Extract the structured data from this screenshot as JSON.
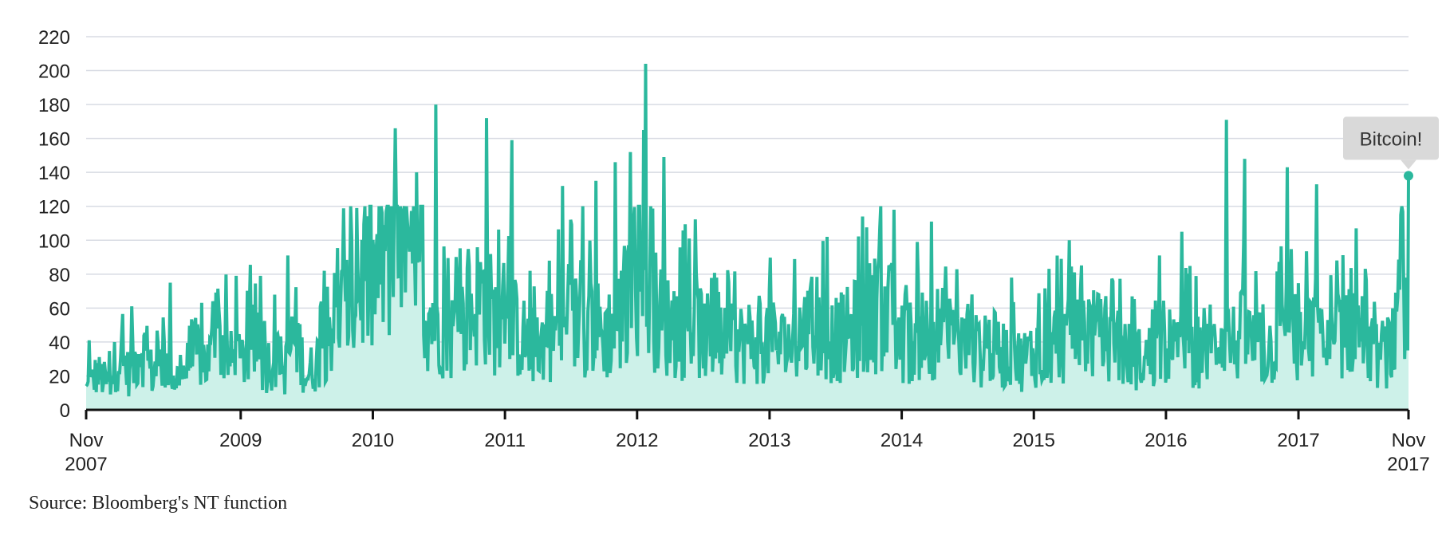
{
  "chart_data": {
    "type": "area",
    "title": "",
    "xlabel": "",
    "ylabel": "",
    "ylim": [
      0,
      220
    ],
    "yticks": [
      0,
      20,
      40,
      60,
      80,
      100,
      120,
      140,
      160,
      180,
      200,
      220
    ],
    "xlim": [
      "2007-11-01",
      "2017-11-01"
    ],
    "xticks": [
      {
        "date": "2007-11-01",
        "lines": [
          "Nov",
          "2007"
        ]
      },
      {
        "date": "2009-01-01",
        "lines": [
          "2009"
        ]
      },
      {
        "date": "2010-01-01",
        "lines": [
          "2010"
        ]
      },
      {
        "date": "2011-01-01",
        "lines": [
          "2011"
        ]
      },
      {
        "date": "2012-01-01",
        "lines": [
          "2012"
        ]
      },
      {
        "date": "2013-01-01",
        "lines": [
          "2013"
        ]
      },
      {
        "date": "2014-01-01",
        "lines": [
          "2014"
        ]
      },
      {
        "date": "2015-01-01",
        "lines": [
          "2015"
        ]
      },
      {
        "date": "2016-01-01",
        "lines": [
          "2016"
        ]
      },
      {
        "date": "2017-01-01",
        "lines": [
          "2017"
        ]
      },
      {
        "date": "2017-11-01",
        "lines": [
          "Nov",
          "2017"
        ]
      }
    ],
    "grid": true,
    "colors": {
      "line": "#2bb89d",
      "fill": "#cdf1e9",
      "grid": "#d8dbe3",
      "axis": "#111111",
      "annotation_bg": "#d9d9d9"
    },
    "series": [
      {
        "points": [
          [
            "2007-11-01",
            12
          ],
          [
            "2007-12-01",
            22
          ],
          [
            "2008-01-01",
            16
          ],
          [
            "2008-02-01",
            34
          ],
          [
            "2008-03-01",
            20
          ],
          [
            "2008-04-01",
            40
          ],
          [
            "2008-05-01",
            22
          ],
          [
            "2008-06-01",
            28
          ],
          [
            "2008-07-01",
            18
          ],
          [
            "2008-08-01",
            24
          ],
          [
            "2008-09-01",
            35
          ],
          [
            "2008-10-01",
            28
          ],
          [
            "2008-11-01",
            45
          ],
          [
            "2008-12-01",
            30
          ],
          [
            "2009-01-01",
            28
          ],
          [
            "2009-02-01",
            40
          ],
          [
            "2009-03-01",
            24
          ],
          [
            "2009-04-01",
            32
          ],
          [
            "2009-05-01",
            22
          ],
          [
            "2009-06-01",
            48
          ],
          [
            "2009-07-01",
            20
          ],
          [
            "2009-08-01",
            30
          ],
          [
            "2009-09-01",
            50
          ],
          [
            "2009-10-01",
            58
          ],
          [
            "2009-11-01",
            62
          ],
          [
            "2009-12-01",
            80
          ],
          [
            "2010-01-01",
            75
          ],
          [
            "2010-02-01",
            95
          ],
          [
            "2010-03-01",
            110
          ],
          [
            "2010-04-01",
            85
          ],
          [
            "2010-05-01",
            70
          ],
          [
            "2010-06-01",
            60
          ],
          [
            "2010-07-01",
            55
          ],
          [
            "2010-08-01",
            45
          ],
          [
            "2010-09-01",
            50
          ],
          [
            "2010-10-01",
            60
          ],
          [
            "2010-11-01",
            70
          ],
          [
            "2010-12-01",
            55
          ],
          [
            "2011-01-01",
            45
          ],
          [
            "2011-02-01",
            50
          ],
          [
            "2011-03-01",
            40
          ],
          [
            "2011-04-01",
            38
          ],
          [
            "2011-05-01",
            45
          ],
          [
            "2011-06-01",
            48
          ],
          [
            "2011-07-01",
            50
          ],
          [
            "2011-08-01",
            55
          ],
          [
            "2011-09-01",
            52
          ],
          [
            "2011-10-01",
            45
          ],
          [
            "2011-11-01",
            50
          ],
          [
            "2011-12-01",
            60
          ],
          [
            "2012-01-01",
            85
          ],
          [
            "2012-02-01",
            70
          ],
          [
            "2012-03-01",
            55
          ],
          [
            "2012-04-01",
            50
          ],
          [
            "2012-05-01",
            45
          ],
          [
            "2012-06-01",
            55
          ],
          [
            "2012-07-01",
            45
          ],
          [
            "2012-08-01",
            40
          ],
          [
            "2012-09-01",
            38
          ],
          [
            "2012-10-01",
            40
          ],
          [
            "2012-11-01",
            42
          ],
          [
            "2012-12-01",
            40
          ],
          [
            "2013-01-01",
            45
          ],
          [
            "2013-02-01",
            38
          ],
          [
            "2013-03-01",
            40
          ],
          [
            "2013-04-01",
            48
          ],
          [
            "2013-05-01",
            50
          ],
          [
            "2013-06-01",
            45
          ],
          [
            "2013-07-01",
            42
          ],
          [
            "2013-08-01",
            45
          ],
          [
            "2013-09-01",
            50
          ],
          [
            "2013-10-01",
            55
          ],
          [
            "2013-11-01",
            60
          ],
          [
            "2013-12-01",
            55
          ],
          [
            "2014-01-01",
            40
          ],
          [
            "2014-02-01",
            42
          ],
          [
            "2014-03-01",
            45
          ],
          [
            "2014-04-01",
            48
          ],
          [
            "2014-05-01",
            45
          ],
          [
            "2014-06-01",
            40
          ],
          [
            "2014-07-01",
            38
          ],
          [
            "2014-08-01",
            35
          ],
          [
            "2014-09-01",
            38
          ],
          [
            "2014-10-01",
            35
          ],
          [
            "2014-11-01",
            32
          ],
          [
            "2014-12-01",
            30
          ],
          [
            "2015-01-01",
            35
          ],
          [
            "2015-02-01",
            38
          ],
          [
            "2015-03-01",
            42
          ],
          [
            "2015-04-01",
            40
          ],
          [
            "2015-05-01",
            45
          ],
          [
            "2015-06-01",
            50
          ],
          [
            "2015-07-01",
            42
          ],
          [
            "2015-08-01",
            38
          ],
          [
            "2015-09-01",
            35
          ],
          [
            "2015-10-01",
            32
          ],
          [
            "2015-11-01",
            30
          ],
          [
            "2015-12-01",
            35
          ],
          [
            "2016-01-01",
            40
          ],
          [
            "2016-02-01",
            35
          ],
          [
            "2016-03-01",
            38
          ],
          [
            "2016-04-01",
            35
          ],
          [
            "2016-05-01",
            32
          ],
          [
            "2016-06-01",
            50
          ],
          [
            "2016-07-01",
            40
          ],
          [
            "2016-08-01",
            45
          ],
          [
            "2016-09-01",
            38
          ],
          [
            "2016-10-01",
            35
          ],
          [
            "2016-11-01",
            40
          ],
          [
            "2016-12-01",
            50
          ],
          [
            "2017-01-01",
            35
          ],
          [
            "2017-02-01",
            45
          ],
          [
            "2017-03-01",
            40
          ],
          [
            "2017-04-01",
            35
          ],
          [
            "2017-05-01",
            50
          ],
          [
            "2017-06-01",
            55
          ],
          [
            "2017-07-01",
            38
          ],
          [
            "2017-08-01",
            32
          ],
          [
            "2017-09-01",
            35
          ],
          [
            "2017-10-01",
            45
          ],
          [
            "2017-11-01",
            138
          ]
        ],
        "spikes": [
          [
            "2007-11-10",
            41
          ],
          [
            "2008-03-05",
            61
          ],
          [
            "2008-06-20",
            75
          ],
          [
            "2008-10-15",
            64
          ],
          [
            "2008-12-20",
            79
          ],
          [
            "2009-02-25",
            79
          ],
          [
            "2009-05-12",
            91
          ],
          [
            "2009-08-20",
            82
          ],
          [
            "2009-11-18",
            119
          ],
          [
            "2010-03-05",
            166
          ],
          [
            "2010-05-01",
            140
          ],
          [
            "2010-06-25",
            180
          ],
          [
            "2010-11-12",
            172
          ],
          [
            "2011-01-20",
            159
          ],
          [
            "2011-06-10",
            132
          ],
          [
            "2011-09-10",
            135
          ],
          [
            "2011-11-01",
            146
          ],
          [
            "2011-12-15",
            152
          ],
          [
            "2012-01-20",
            165
          ],
          [
            "2012-01-25",
            204
          ],
          [
            "2012-03-15",
            149
          ],
          [
            "2012-05-25",
            101
          ],
          [
            "2013-06-10",
            102
          ],
          [
            "2013-09-15",
            114
          ],
          [
            "2013-12-10",
            118
          ],
          [
            "2014-03-25",
            111
          ],
          [
            "2014-11-01",
            78
          ],
          [
            "2015-04-10",
            100
          ],
          [
            "2015-12-15",
            91
          ],
          [
            "2016-02-15",
            105
          ],
          [
            "2016-06-15",
            171
          ],
          [
            "2016-08-05",
            148
          ],
          [
            "2016-12-01",
            143
          ],
          [
            "2017-02-20",
            133
          ],
          [
            "2017-06-10",
            107
          ]
        ],
        "last_point": [
          "2017-11-01",
          138
        ]
      }
    ],
    "annotation": {
      "text": "Bitcoin!",
      "x": "2017-11-01",
      "y": 138
    }
  },
  "source": "Source: Bloomberg's NT function"
}
